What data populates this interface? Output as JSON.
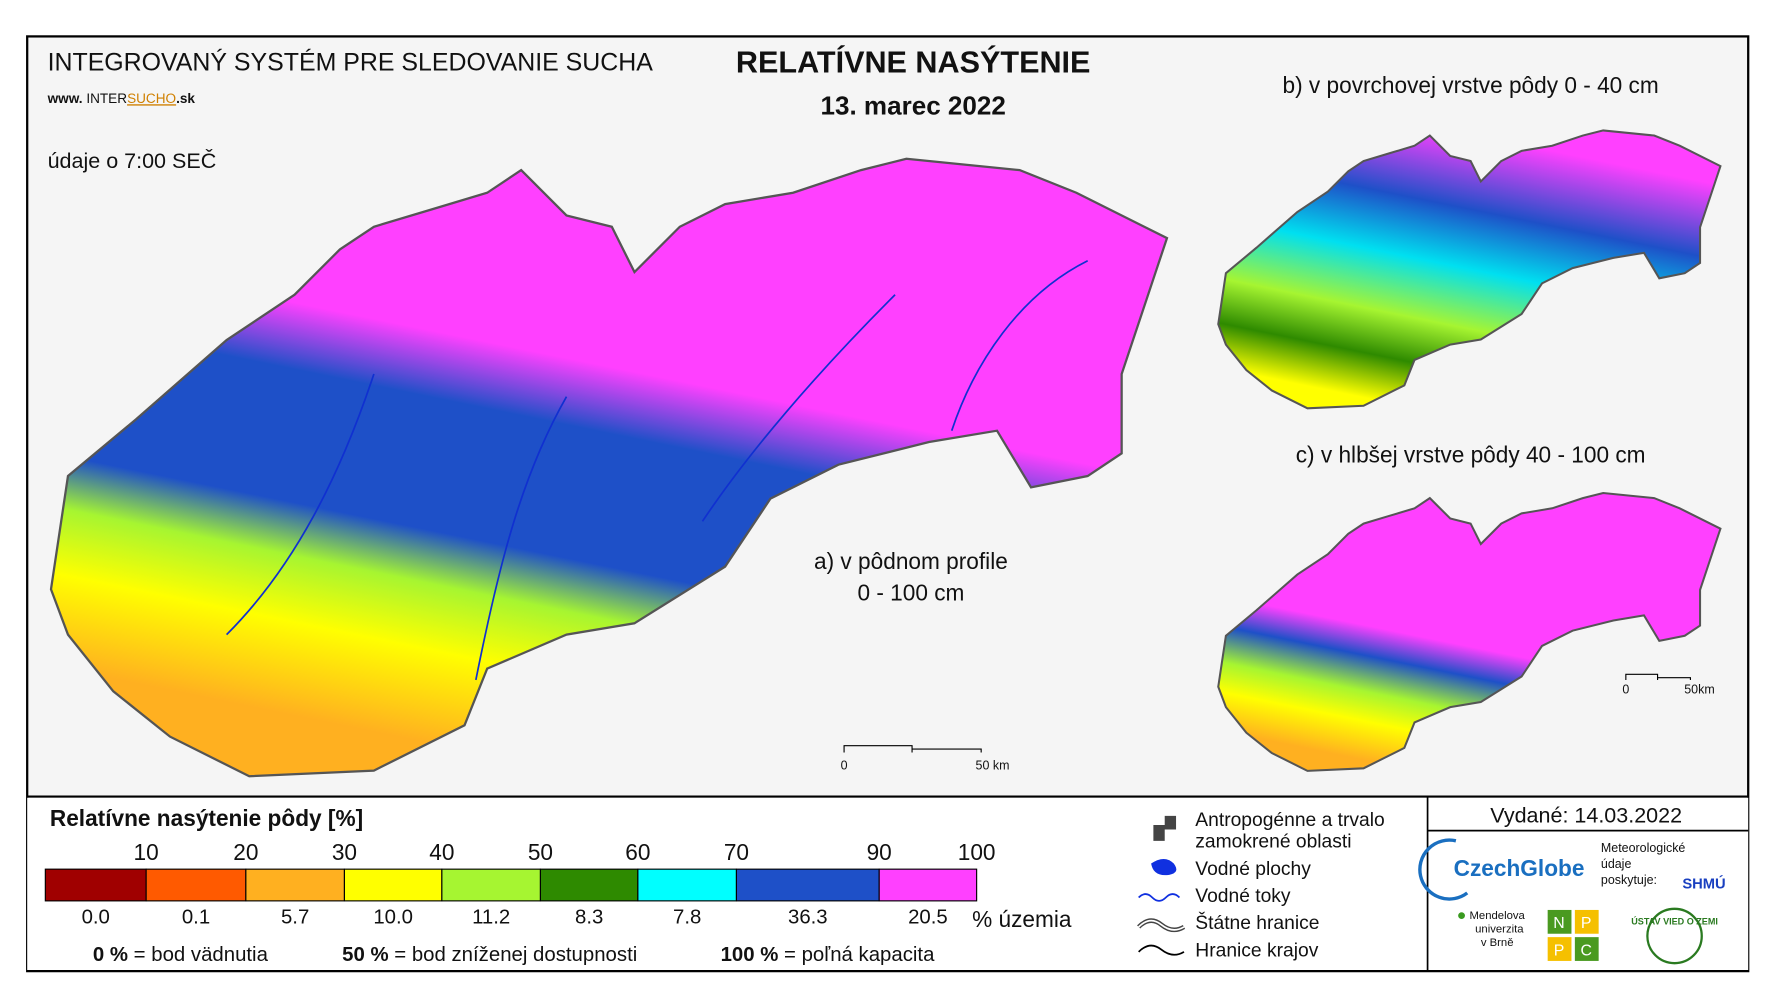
{
  "header": {
    "system": "INTEGROVANÝ SYSTÉM PRE SLEDOVANIE SUCHA",
    "url": [
      "www. ",
      "INTER",
      "SUCHO",
      ".sk"
    ],
    "time_note": "údaje o 7:00 SEČ"
  },
  "title": "RELATÍVNE NASÝTENIE",
  "date": "13. marec 2022",
  "maps": [
    {
      "label": "a) v pôdnom profile",
      "depth": "0 - 100 cm",
      "scale": [
        "0",
        "50 km"
      ]
    },
    {
      "label": "b) v povrchovej vrstve pôdy 0 - 40 cm"
    },
    {
      "label": "c) v hlbšej vrstve pôdy 40 - 100 cm",
      "scale": [
        "0",
        "50km"
      ]
    }
  ],
  "legend": {
    "title": "Relatívne nasýtenie pôdy [%]",
    "thresholds": [
      "10",
      "20",
      "30",
      "40",
      "50",
      "60",
      "70",
      "90",
      "100"
    ],
    "classes": [
      {
        "color": "#a00000",
        "share": "0.0"
      },
      {
        "color": "#ff5a00",
        "share": "0.1"
      },
      {
        "color": "#ffb020",
        "share": "5.7"
      },
      {
        "color": "#ffff00",
        "share": "10.0"
      },
      {
        "color": "#a6f531",
        "share": "11.2"
      },
      {
        "color": "#2e8a00",
        "share": "8.3"
      },
      {
        "color": "#00ffff",
        "share": "7.8"
      },
      {
        "color": "#1e50c8",
        "share": "36.3"
      },
      {
        "color": "#ff40ff",
        "share": "20.5"
      }
    ],
    "unit": "% územia",
    "notes": [
      {
        "bold": "0 %",
        "text": "= bod vädnutia"
      },
      {
        "bold": "50 %",
        "text": "= bod zníženej dostupnosti"
      },
      {
        "bold": "100 %",
        "text": "= poľná kapacita"
      }
    ]
  },
  "symbols": [
    "Antropogénne a trvalo",
    "zamokrené oblasti",
    "Vodné plochy",
    "Vodné toky",
    "Štátne hranice",
    "Hranice krajov"
  ],
  "issued": "Vydané: 14.03.2022",
  "logos": {
    "czechglobe": "CzechGlobe",
    "meteo": [
      "Meteorologické",
      "údaje",
      "poskytuje:"
    ],
    "shmu": "SHMÚ",
    "mendel": [
      "Mendelova",
      "univerzita",
      "v Brně"
    ],
    "nppc": [
      "N",
      "P",
      "P",
      "C"
    ],
    "uvz": "ÚSTAV VIED O ZEMI"
  }
}
